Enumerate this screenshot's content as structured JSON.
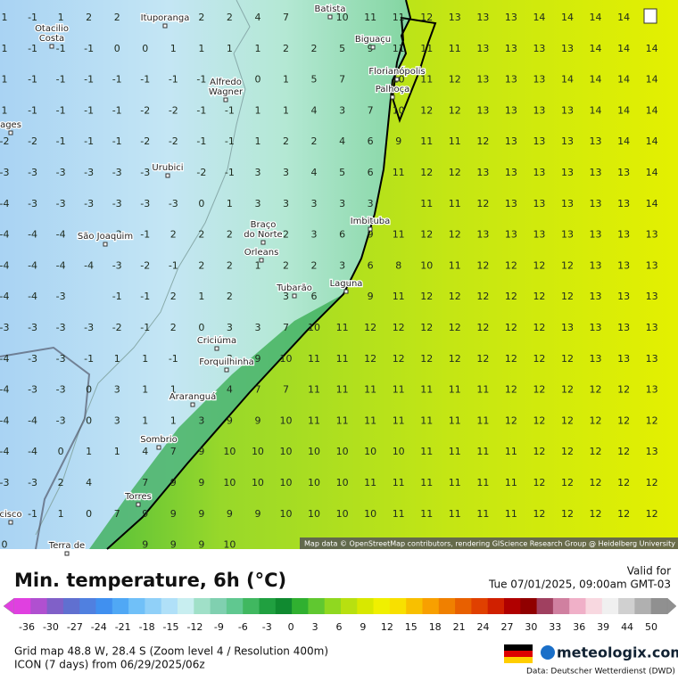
{
  "map": {
    "cities": [
      {
        "lines": [
          "Ituporanga"
        ]
      },
      {
        "lines": [
          "Batista"
        ]
      },
      {
        "lines": [
          "Otacilio",
          "Costa"
        ]
      },
      {
        "lines": [
          "Biguaçu"
        ]
      },
      {
        "lines": [
          "Alfredo",
          "Wagner"
        ]
      },
      {
        "lines": [
          "Florianópolis"
        ]
      },
      {
        "lines": [
          "Palhoça"
        ]
      },
      {
        "lines": [
          "ages"
        ]
      },
      {
        "lines": [
          "Urubici"
        ]
      },
      {
        "lines": [
          "Imbituba"
        ]
      },
      {
        "lines": [
          "São Joaquim"
        ]
      },
      {
        "lines": [
          "Braço",
          "do Norte"
        ]
      },
      {
        "lines": [
          "Orleans"
        ]
      },
      {
        "lines": [
          "Tubarão"
        ]
      },
      {
        "lines": [
          "Laguna"
        ]
      },
      {
        "lines": [
          "Criciúma"
        ]
      },
      {
        "lines": [
          "Forquilhinha"
        ]
      },
      {
        "lines": [
          "Araranguá"
        ]
      },
      {
        "lines": [
          "Sombrio"
        ]
      },
      {
        "lines": [
          "Torres"
        ]
      },
      {
        "lines": [
          "Terra de"
        ]
      },
      {
        "lines": [
          "cisco"
        ]
      }
    ],
    "grid": [
      [
        1,
        -1,
        1,
        2,
        2,
        0,
        null,
        2,
        2,
        4,
        7,
        null,
        10,
        11,
        11,
        12,
        13,
        13,
        13,
        14,
        14,
        14,
        14,
        null
      ],
      [
        1,
        -1,
        -1,
        -1,
        0,
        0,
        1,
        1,
        1,
        1,
        2,
        2,
        5,
        9,
        11,
        11,
        11,
        13,
        13,
        13,
        13,
        14,
        14,
        14
      ],
      [
        1,
        -1,
        -1,
        -1,
        -1,
        -1,
        -1,
        -1,
        null,
        0,
        1,
        5,
        7,
        null,
        10,
        11,
        12,
        13,
        13,
        13,
        14,
        14,
        14,
        14
      ],
      [
        1,
        -1,
        -1,
        -1,
        -1,
        -2,
        -2,
        -1,
        -1,
        1,
        1,
        4,
        3,
        7,
        10,
        12,
        12,
        13,
        13,
        13,
        13,
        14,
        14,
        14
      ],
      [
        -2,
        -2,
        -1,
        -1,
        -1,
        -2,
        -2,
        -1,
        -1,
        1,
        2,
        2,
        4,
        6,
        9,
        11,
        11,
        12,
        13,
        13,
        13,
        13,
        14,
        14
      ],
      [
        -3,
        -3,
        -3,
        -3,
        -3,
        -3,
        null,
        -2,
        -1,
        3,
        3,
        4,
        5,
        6,
        11,
        12,
        12,
        13,
        13,
        13,
        13,
        13,
        13,
        14
      ],
      [
        -4,
        -3,
        -3,
        -3,
        -3,
        -3,
        -3,
        0,
        1,
        3,
        3,
        3,
        3,
        3,
        null,
        11,
        11,
        12,
        13,
        13,
        13,
        13,
        13,
        14
      ],
      [
        -4,
        -4,
        -4,
        null,
        -3,
        -1,
        2,
        2,
        2,
        null,
        2,
        3,
        6,
        9,
        11,
        12,
        12,
        13,
        13,
        13,
        13,
        13,
        13,
        13
      ],
      [
        -4,
        -4,
        -4,
        -4,
        -3,
        -2,
        -1,
        2,
        2,
        1,
        2,
        2,
        3,
        6,
        8,
        10,
        11,
        12,
        12,
        12,
        12,
        13,
        13,
        13
      ],
      [
        -4,
        -4,
        -3,
        null,
        -1,
        -1,
        2,
        1,
        2,
        null,
        3,
        6,
        null,
        9,
        11,
        12,
        12,
        12,
        12,
        12,
        12,
        13,
        13,
        13
      ],
      [
        -3,
        -3,
        -3,
        -3,
        -2,
        -1,
        2,
        0,
        3,
        3,
        7,
        10,
        11,
        12,
        12,
        12,
        12,
        12,
        12,
        12,
        13,
        13,
        13,
        13
      ],
      [
        -4,
        -3,
        -3,
        -1,
        1,
        1,
        -1,
        null,
        3,
        9,
        10,
        11,
        11,
        12,
        12,
        12,
        12,
        12,
        12,
        12,
        12,
        13,
        13,
        13
      ],
      [
        -4,
        -3,
        -3,
        0,
        3,
        1,
        1,
        null,
        4,
        7,
        7,
        11,
        11,
        11,
        11,
        11,
        11,
        11,
        12,
        12,
        12,
        12,
        12,
        13
      ],
      [
        -4,
        -4,
        -3,
        0,
        3,
        1,
        1,
        3,
        9,
        9,
        10,
        11,
        11,
        11,
        11,
        11,
        11,
        11,
        12,
        12,
        12,
        12,
        12,
        12
      ],
      [
        -4,
        -4,
        0,
        1,
        1,
        4,
        7,
        9,
        10,
        10,
        10,
        10,
        10,
        10,
        10,
        11,
        11,
        11,
        11,
        12,
        12,
        12,
        12,
        13
      ],
      [
        -3,
        -3,
        2,
        4,
        null,
        7,
        9,
        9,
        10,
        10,
        10,
        10,
        10,
        11,
        11,
        11,
        11,
        11,
        11,
        12,
        12,
        12,
        12,
        12
      ],
      [
        null,
        -1,
        1,
        0,
        7,
        9,
        9,
        9,
        9,
        9,
        10,
        10,
        10,
        10,
        11,
        11,
        11,
        11,
        11,
        12,
        12,
        12,
        12,
        12
      ],
      [
        0,
        null,
        null,
        null,
        null,
        9,
        9,
        9,
        10
      ]
    ],
    "attribution": "Map data © OpenStreetMap contributors, rendering GIScience Research Group @ Heidelberg University"
  },
  "legend": {
    "title": "Min. temperature, 6h (°C)",
    "valid_label": "Valid for",
    "valid_time": "Tue 07/01/2025, 09:00am GMT-03",
    "scale_ticks": [
      -36,
      -30,
      -27,
      -24,
      -21,
      -18,
      -15,
      -12,
      -9,
      -6,
      -3,
      0,
      3,
      6,
      9,
      12,
      15,
      18,
      21,
      24,
      27,
      30,
      33,
      36,
      39,
      44,
      50
    ]
  },
  "footer": {
    "grid_info": "Grid map 48.8 W, 28.4 S (Zoom level 4 / Resolution 400m)",
    "model_run": "ICON (7 days) from 06/29/2025/06z",
    "brand": "meteologix.com",
    "data_source": "Data: Deutscher Wetterdienst (DWD)"
  }
}
